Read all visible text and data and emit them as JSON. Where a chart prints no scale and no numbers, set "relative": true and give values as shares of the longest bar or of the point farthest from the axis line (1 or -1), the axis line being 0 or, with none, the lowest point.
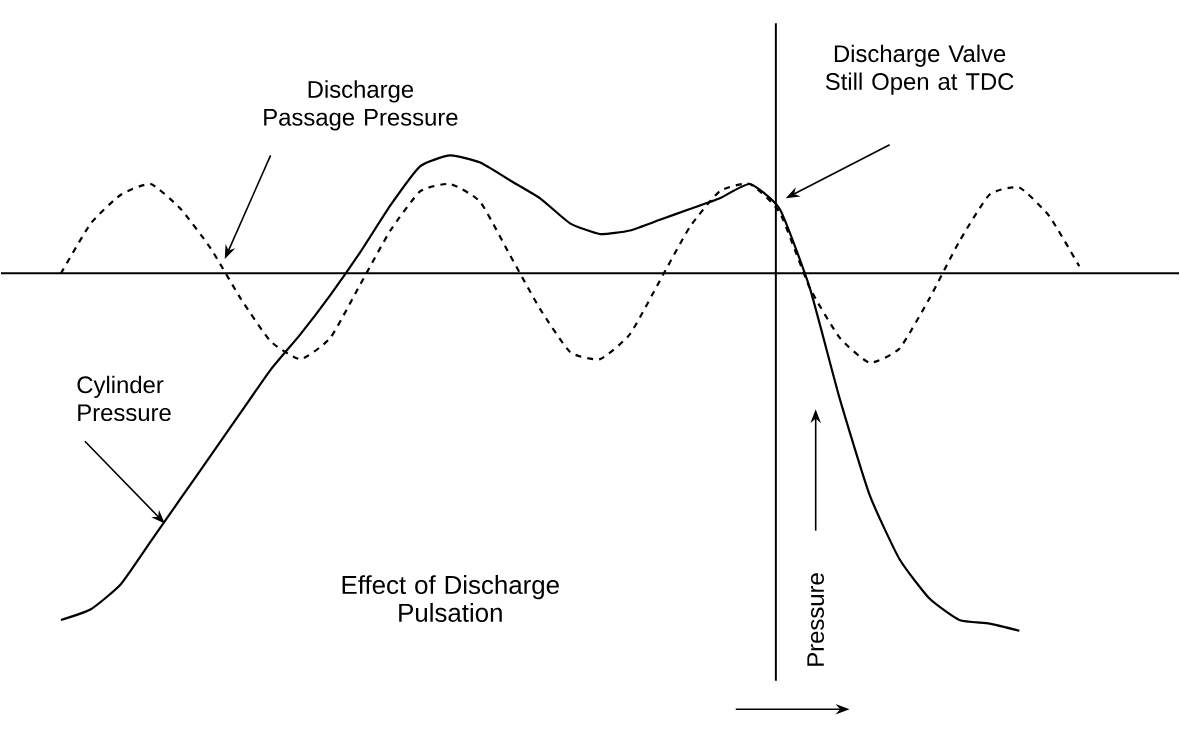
{
  "chart_data": {
    "type": "line",
    "title": "Effect of Discharge Pulsation",
    "ylabel": "Pressure",
    "relative": true,
    "categories": [
      null,
      null,
      null,
      null,
      null,
      null,
      null,
      null,
      null,
      null,
      null,
      null,
      null,
      null,
      null,
      null,
      null,
      null,
      null,
      null,
      null,
      null,
      null,
      null,
      null,
      null,
      null,
      null,
      null,
      null,
      null,
      null,
      null,
      null,
      null
    ],
    "series": [
      {
        "name": "Discharge Passage Pressure",
        "color": "#000000",
        "line_style": "dashed",
        "values": [
          0,
          0.14,
          0.22,
          0.25,
          0.18,
          0.07,
          -0.07,
          -0.19,
          -0.24,
          -0.18,
          -0.03,
          0.12,
          0.23,
          0.25,
          0.2,
          0.05,
          -0.1,
          -0.22,
          -0.24,
          -0.17,
          -0.02,
          0.13,
          0.23,
          0.25,
          0.17,
          -0.04,
          -0.18,
          -0.25,
          -0.21,
          -0.07,
          0.09,
          0.22,
          0.24,
          0.16,
          0.02
        ]
      },
      {
        "name": "Cylinder Pressure",
        "color": "#000000",
        "line_style": "solid",
        "values": [
          -0.97,
          -0.94,
          -0.87,
          -0.75,
          -0.63,
          -0.51,
          -0.39,
          -0.27,
          -0.17,
          -0.06,
          0.06,
          0.19,
          0.3,
          0.33,
          0.31,
          0.26,
          0.21,
          0.14,
          0.11,
          0.12,
          0.15,
          0.18,
          0.21,
          0.25,
          0.18,
          -0.04,
          -0.35,
          -0.62,
          -0.8,
          -0.91,
          -0.97,
          -0.98,
          -1.0,
          null,
          null
        ]
      }
    ],
    "annotations": [
      "Discharge Valve Still Open at TDC"
    ]
  }
}
